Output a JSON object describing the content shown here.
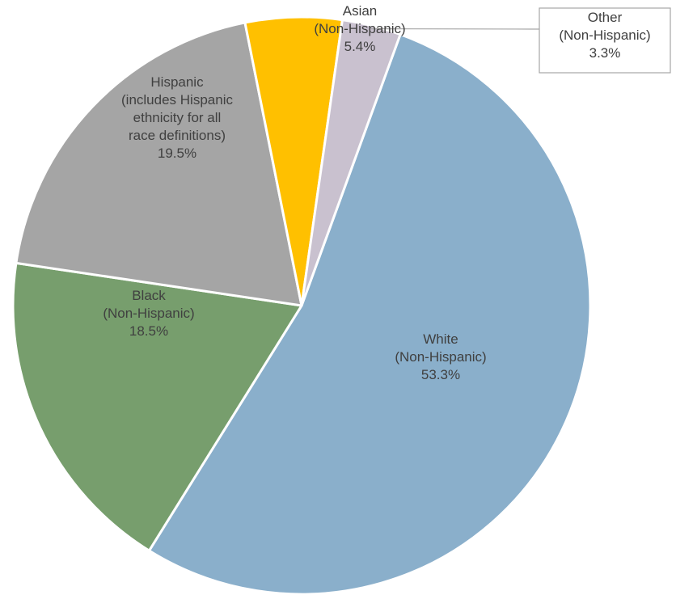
{
  "chart_data": {
    "type": "pie",
    "start_angle_deg": 20,
    "direction": "clockwise",
    "slices": [
      {
        "label_lines": [
          "White",
          "(Non-Hispanic)"
        ],
        "value": 53.3,
        "value_label": "53.3%",
        "color": "#8AAFCB"
      },
      {
        "label_lines": [
          "Black",
          "(Non-Hispanic)"
        ],
        "value": 18.5,
        "value_label": "18.5%",
        "color": "#779E6D"
      },
      {
        "label_lines": [
          "Hispanic",
          "(includes Hispanic",
          "ethnicity for all",
          "race definitions)"
        ],
        "value": 19.5,
        "value_label": "19.5%",
        "color": "#A5A5A5"
      },
      {
        "label_lines": [
          "Asian",
          "(Non-Hispanic)"
        ],
        "value": 5.4,
        "value_label": "5.4%",
        "color": "#FFC000"
      },
      {
        "label_lines": [
          "Other",
          "(Non-Hispanic)"
        ],
        "value": 3.3,
        "value_label": "3.3%",
        "color": "#C9C1CF",
        "callout": true
      }
    ]
  }
}
